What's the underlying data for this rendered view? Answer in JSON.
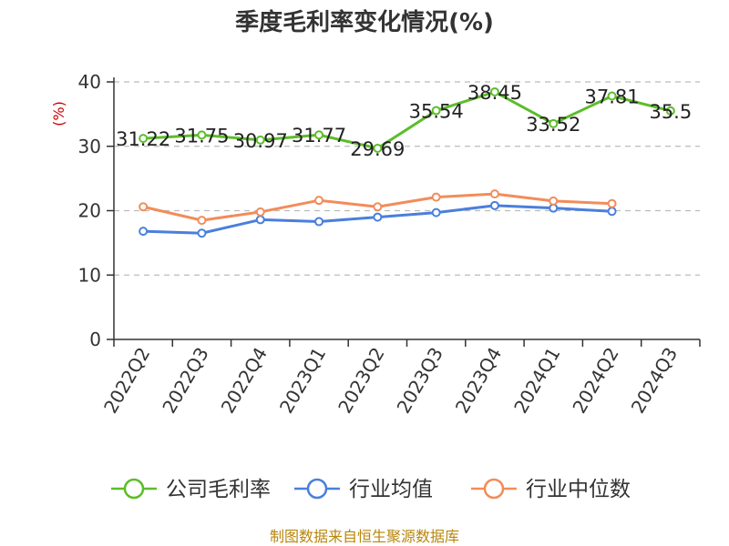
{
  "chart_data": {
    "type": "line",
    "title": "季度毛利率变化情况(%)",
    "ylabel": "(%)",
    "ylim": [
      0,
      40
    ],
    "yticks": [
      0,
      10,
      20,
      30,
      40
    ],
    "categories": [
      "2022Q2",
      "2022Q3",
      "2022Q4",
      "2023Q1",
      "2023Q2",
      "2023Q3",
      "2023Q4",
      "2024Q1",
      "2024Q2",
      "2024Q3"
    ],
    "grid": true,
    "legend_position": "bottom",
    "series": [
      {
        "name": "公司毛利率",
        "color": "#5cbd2a",
        "values": [
          31.22,
          31.75,
          30.97,
          31.77,
          29.69,
          35.54,
          38.45,
          33.52,
          37.81,
          35.5
        ],
        "labels": [
          "31.22",
          "31.75",
          "30.97",
          "31.77",
          "29.69",
          "35.54",
          "38.45",
          "33.52",
          "37.81",
          "35.5"
        ]
      },
      {
        "name": "行业均值",
        "color": "#4a7fdc",
        "values": [
          16.8,
          16.5,
          18.6,
          18.3,
          19.0,
          19.7,
          20.8,
          20.4,
          19.9,
          null
        ]
      },
      {
        "name": "行业中位数",
        "color": "#f28c5a",
        "values": [
          20.6,
          18.5,
          19.8,
          21.6,
          20.6,
          22.1,
          22.6,
          21.5,
          21.1,
          null
        ]
      }
    ]
  },
  "source_note": "制图数据来自恒生聚源数据库"
}
